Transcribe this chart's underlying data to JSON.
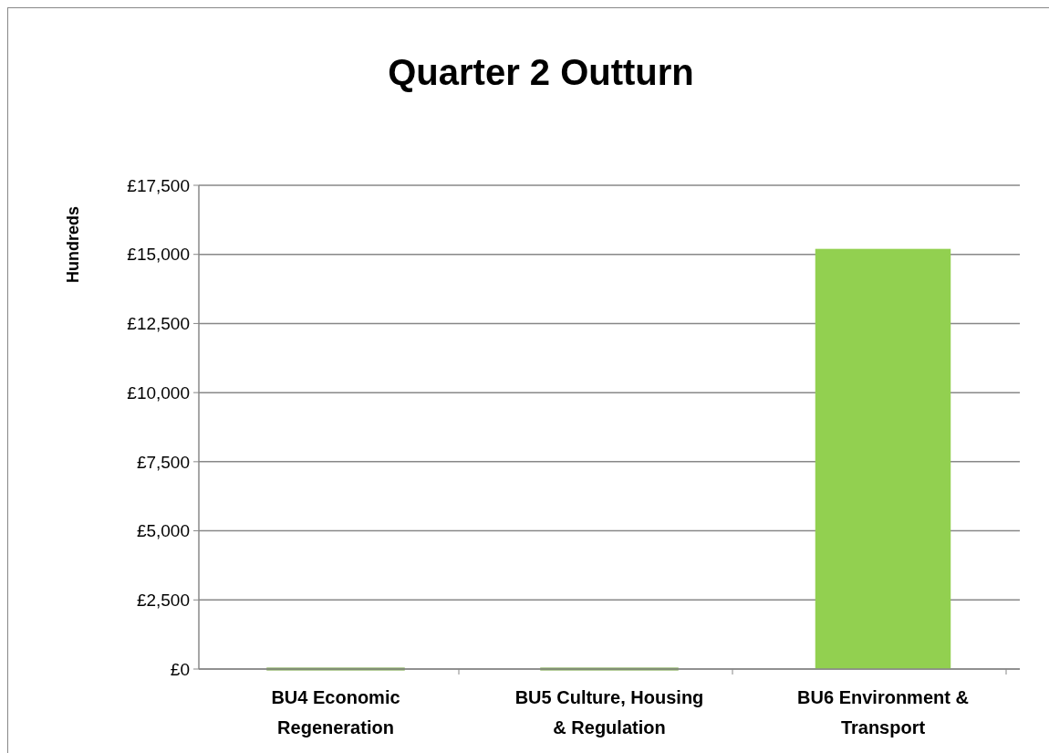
{
  "chart_data": {
    "type": "bar",
    "title": "Quarter 2 Outturn",
    "ylabel": "Hundreds",
    "categories": [
      "BU4  Economic Regeneration",
      "BU5  Culture, Housing & Regulation",
      "BU6  Environment & Transport"
    ],
    "values": [
      0,
      0,
      15200
    ],
    "color": "#92d050",
    "ylim": [
      0,
      17500
    ],
    "yticks": [
      {
        "value": 0,
        "label": "£0"
      },
      {
        "value": 2500,
        "label": "£2,500"
      },
      {
        "value": 5000,
        "label": "£5,000"
      },
      {
        "value": 7500,
        "label": "£7,500"
      },
      {
        "value": 10000,
        "label": "£10,000"
      },
      {
        "value": 12500,
        "label": "£12,500"
      },
      {
        "value": 15000,
        "label": "£15,000"
      },
      {
        "value": 17500,
        "label": "£17,500"
      }
    ],
    "grid": true
  }
}
